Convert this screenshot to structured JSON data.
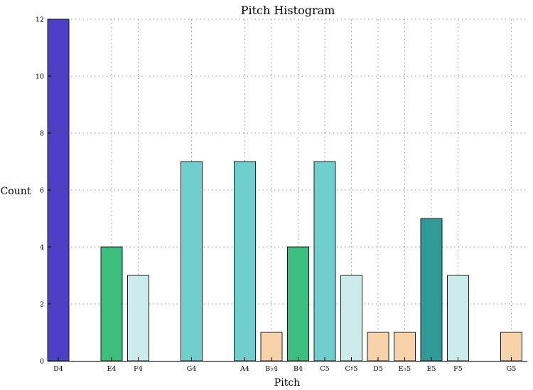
{
  "chart_data": {
    "type": "bar",
    "title": "Pitch Histogram",
    "xlabel": "Pitch",
    "ylabel": "Count",
    "ylim": [
      0,
      12
    ],
    "yticks": [
      0,
      2,
      4,
      6,
      8,
      10,
      12
    ],
    "grid": true,
    "slots": 18,
    "categories": [
      "D4",
      "E4",
      "F4",
      "G4",
      "A4",
      "B♭4",
      "B4",
      "C5",
      "C♯5",
      "D5",
      "E♭5",
      "E5",
      "F5",
      "G5"
    ],
    "slot_index": [
      0,
      2,
      3,
      5,
      7,
      8,
      9,
      10,
      11,
      12,
      13,
      14,
      15,
      17
    ],
    "values": [
      12,
      4,
      3,
      7,
      7,
      1,
      4,
      7,
      3,
      1,
      1,
      5,
      3,
      1
    ],
    "colors": [
      "#4b3fc4",
      "#3cbf7e",
      "#ccecec",
      "#6ecfcd",
      "#6ecfcd",
      "#f8d2a8",
      "#3cbf7e",
      "#6ecfcd",
      "#ccecec",
      "#f8d2a8",
      "#f8d2a8",
      "#2f9a98",
      "#ccecec",
      "#f8d2a8"
    ]
  }
}
